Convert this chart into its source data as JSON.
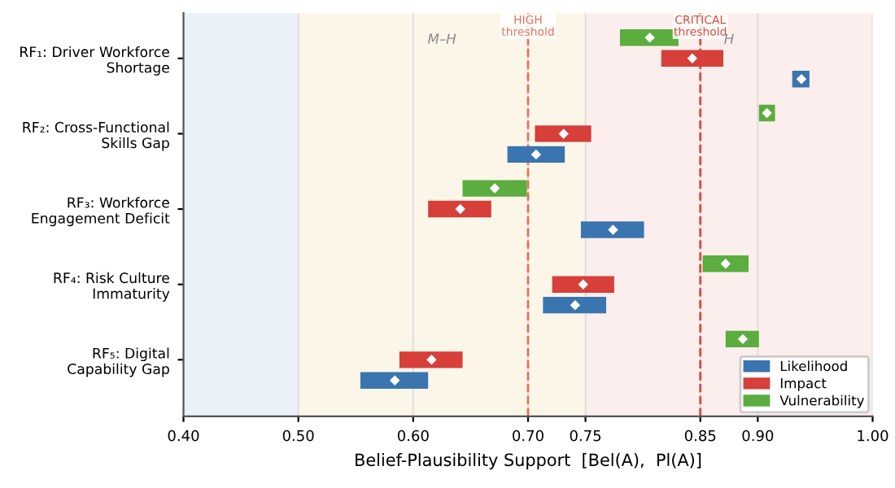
{
  "chart_data": {
    "type": "bar",
    "orientation": "horizontal",
    "xlabel": "Belief-Plausibility Support  [Bel(A),  Pl(A)]",
    "categories": [
      "RF₁: Driver Workforce\nShortage",
      "RF₂: Cross-Functional\nSkills Gap",
      "RF₃: Workforce\nEngagement Deficit",
      "RF₄: Risk Culture\nImmaturity",
      "RF₅: Digital\nCapability Gap"
    ],
    "series": [
      {
        "name": "Likelihood",
        "color": "#3a75b0",
        "base": [
          0.93,
          0.682,
          0.746,
          0.713,
          0.554
        ],
        "values": [
          0.015,
          0.05,
          0.055,
          0.055,
          0.059
        ]
      },
      {
        "name": "Impact",
        "color": "#d63f3a",
        "base": [
          0.816,
          0.706,
          0.613,
          0.721,
          0.588
        ],
        "values": [
          0.054,
          0.049,
          0.055,
          0.054,
          0.055
        ]
      },
      {
        "name": "Vulnerability",
        "color": "#5aad3e",
        "base": [
          0.78,
          0.901,
          0.643,
          0.852,
          0.872
        ],
        "values": [
          0.051,
          0.014,
          0.056,
          0.04,
          0.029
        ]
      },
      {
        "type": "scatter",
        "color": "#ffffff",
        "marker": "diamond",
        "values": [
          0.938,
          0.707,
          0.774,
          0.741,
          0.584
        ]
      },
      {
        "type": "scatter",
        "color": "#ffffff",
        "marker": "diamond",
        "values": [
          0.843,
          0.731,
          0.641,
          0.748,
          0.616
        ]
      },
      {
        "type": "scatter",
        "color": "#ffffff",
        "marker": "diamond",
        "values": [
          0.806,
          0.908,
          0.671,
          0.872,
          0.887
        ]
      }
    ],
    "xlim": [
      0.4,
      1.0
    ],
    "xticks": [
      {
        "value": 0.4,
        "label": "0.40"
      },
      {
        "value": 0.5,
        "label": "0.50"
      },
      {
        "value": 0.6,
        "label": "0.60"
      },
      {
        "value": 0.7,
        "label": "0.70"
      },
      {
        "value": 0.75,
        "label": "0.75"
      },
      {
        "value": 0.85,
        "label": "0.85"
      },
      {
        "value": 0.9,
        "label": "0.90"
      },
      {
        "value": 1.0,
        "label": "1.00"
      }
    ],
    "bands": [
      {
        "axis": "x",
        "from": 0.4,
        "to": 0.5,
        "label": null,
        "color": "#eaf1f8"
      },
      {
        "axis": "x",
        "from": 0.5,
        "to": 0.75,
        "label": "M–H",
        "color": "#fbf6e8"
      },
      {
        "axis": "x",
        "from": 0.75,
        "to": 1.0,
        "label": "H",
        "color": "#fbeeec"
      }
    ],
    "ref_lines": [
      {
        "axis": "x",
        "value": 0.7,
        "label": "HIGH\nthreshold",
        "color": "#e8705a",
        "line_style": "dashed"
      },
      {
        "axis": "x",
        "value": 0.85,
        "label": "CRITICAL\nthreshold",
        "color": "#d84a3a",
        "line_style": "dashed"
      }
    ],
    "grid": "x",
    "legend": "bottom right"
  }
}
